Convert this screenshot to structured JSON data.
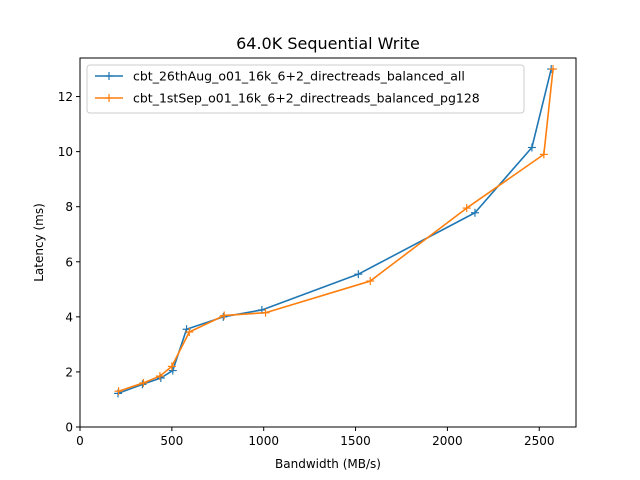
{
  "chart_data": {
    "type": "line",
    "title": "64.0K  Sequential Write",
    "xlabel": "Bandwidth (MB/s)",
    "ylabel": "Latency (ms)",
    "xlim": [
      0,
      2700
    ],
    "ylim": [
      0,
      13.4
    ],
    "xticks": [
      0,
      500,
      1000,
      1500,
      2000,
      2500
    ],
    "yticks": [
      0,
      2,
      4,
      6,
      8,
      10,
      12
    ],
    "grid": false,
    "legend_position": "top-left",
    "series": [
      {
        "name": "cbt_26thAug_o01_16k_6+2_directreads_balanced_all",
        "color": "#1f77b4",
        "marker": "plus",
        "x": [
          207,
          340,
          440,
          505,
          580,
          780,
          990,
          1515,
          2150,
          2460,
          2565
        ],
        "y": [
          1.22,
          1.55,
          1.78,
          2.05,
          3.55,
          4.0,
          4.25,
          5.55,
          7.78,
          10.15,
          13.0
        ]
      },
      {
        "name": "cbt_1stSep_o01_16k_6+2_directreads_balanced_pg128",
        "color": "#ff7f0e",
        "marker": "plus",
        "x": [
          210,
          345,
          435,
          500,
          595,
          785,
          1010,
          1580,
          2105,
          2525,
          2575
        ],
        "y": [
          1.3,
          1.6,
          1.85,
          2.2,
          3.45,
          4.05,
          4.15,
          5.3,
          7.95,
          9.9,
          13.0
        ]
      }
    ]
  }
}
